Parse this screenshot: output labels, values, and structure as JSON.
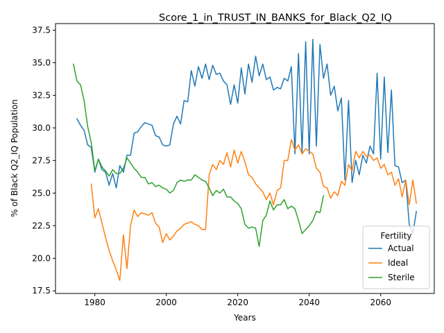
{
  "chart_data": {
    "type": "line",
    "title": "Score_1_in_TRUST_IN_BANKS_for_Black_Q2_IQ",
    "xlabel": "Years",
    "ylabel": "% of Black Q2_IQ Population",
    "xlim": [
      1969,
      2075
    ],
    "ylim": [
      17.3,
      38.0
    ],
    "xticks": [
      1980,
      2000,
      2020,
      2040,
      2060
    ],
    "yticks": [
      17.5,
      20.0,
      22.5,
      25.0,
      27.5,
      30.0,
      32.5,
      35.0,
      37.5
    ],
    "xtick_labels": [
      "1980",
      "2000",
      "2020",
      "2040",
      "2060"
    ],
    "ytick_labels": [
      "17.5",
      "20.0",
      "22.5",
      "25.0",
      "27.5",
      "30.0",
      "32.5",
      "35.0",
      "37.5"
    ],
    "grid": false,
    "legend": {
      "title": "Fertility",
      "position": "bottom-right"
    },
    "series": [
      {
        "name": "Actual",
        "color": "#1f77b4",
        "x": [
          1975,
          1976,
          1977,
          1978,
          1979,
          1980,
          1981,
          1982,
          1983,
          1984,
          1985,
          1986,
          1987,
          1988,
          1989,
          1990,
          1991,
          1992,
          1993,
          1994,
          1995,
          1996,
          1997,
          1998,
          1999,
          2000,
          2001,
          2002,
          2003,
          2004,
          2005,
          2006,
          2007,
          2008,
          2009,
          2010,
          2011,
          2012,
          2013,
          2014,
          2015,
          2016,
          2017,
          2018,
          2019,
          2020,
          2021,
          2022,
          2023,
          2024,
          2025,
          2026,
          2027,
          2028,
          2029,
          2030,
          2031,
          2032,
          2033,
          2034,
          2035,
          2036,
          2037,
          2038,
          2039,
          2040,
          2041,
          2042,
          2043,
          2044,
          2045,
          2046,
          2047,
          2048,
          2049,
          2050,
          2051,
          2052,
          2053,
          2054,
          2055,
          2056,
          2057,
          2058,
          2059,
          2060,
          2061,
          2062,
          2063,
          2064,
          2065,
          2066,
          2067,
          2068,
          2069,
          2070
        ],
        "values": [
          30.7,
          30.2,
          29.8,
          28.7,
          28.5,
          26.6,
          27.6,
          26.8,
          26.6,
          25.6,
          26.5,
          25.4,
          27.1,
          26.6,
          27.9,
          27.9,
          29.6,
          29.7,
          30.1,
          30.4,
          30.3,
          30.2,
          29.4,
          29.3,
          28.7,
          28.6,
          28.7,
          30.3,
          30.9,
          30.3,
          32.1,
          32.0,
          34.4,
          33.2,
          34.7,
          33.8,
          34.9,
          33.7,
          34.8,
          34.1,
          34.2,
          33.6,
          33.3,
          31.8,
          33.3,
          31.9,
          34.6,
          32.6,
          34.9,
          33.5,
          35.5,
          34.0,
          34.9,
          33.7,
          33.9,
          32.9,
          33.1,
          33.0,
          33.8,
          33.6,
          34.7,
          28.0,
          35.7,
          28.1,
          36.6,
          28.0,
          36.8,
          28.6,
          36.4,
          33.8,
          34.9,
          32.5,
          33.2,
          31.3,
          32.3,
          26.0,
          32.1,
          25.8,
          27.5,
          26.4,
          27.9,
          27.3,
          28.6,
          28.0,
          34.2,
          27.6,
          33.9,
          28.1,
          32.9,
          27.1,
          27.0,
          25.8,
          26.0,
          22.6,
          21.9,
          23.6
        ]
      },
      {
        "name": "Ideal",
        "color": "#ff7f0e",
        "x": [
          1979,
          1980,
          1981,
          1982,
          1983,
          1984,
          1985,
          1986,
          1987,
          1988,
          1989,
          1990,
          1991,
          1992,
          1993,
          1994,
          1995,
          1996,
          1997,
          1998,
          1999,
          2000,
          2001,
          2002,
          2003,
          2004,
          2005,
          2006,
          2007,
          2008,
          2009,
          2010,
          2011,
          2012,
          2013,
          2014,
          2015,
          2016,
          2017,
          2018,
          2019,
          2020,
          2021,
          2022,
          2023,
          2024,
          2025,
          2026,
          2027,
          2028,
          2029,
          2030,
          2031,
          2032,
          2033,
          2034,
          2035,
          2036,
          2037,
          2038,
          2039,
          2040,
          2041,
          2042,
          2043,
          2044,
          2045,
          2046,
          2047,
          2048,
          2049,
          2050,
          2051,
          2052,
          2053,
          2054,
          2055,
          2056,
          2057,
          2058,
          2059,
          2060,
          2061,
          2062,
          2063,
          2064,
          2065,
          2066,
          2067,
          2068,
          2069,
          2070
        ],
        "values": [
          25.7,
          23.1,
          23.8,
          22.7,
          21.6,
          20.6,
          19.8,
          19.1,
          18.3,
          21.8,
          19.2,
          22.5,
          23.7,
          23.2,
          23.5,
          23.4,
          23.3,
          23.5,
          22.7,
          22.4,
          21.2,
          21.9,
          21.4,
          21.7,
          22.1,
          22.3,
          22.6,
          22.7,
          22.8,
          22.6,
          22.5,
          22.2,
          22.2,
          26.4,
          27.2,
          26.8,
          27.5,
          27.2,
          28.1,
          27.0,
          28.3,
          27.3,
          28.2,
          27.4,
          26.4,
          26.2,
          25.7,
          25.4,
          25.1,
          24.5,
          25.0,
          24.1,
          25.2,
          25.4,
          27.5,
          27.5,
          29.1,
          28.3,
          28.7,
          28.0,
          28.4,
          28.2,
          28.0,
          26.9,
          26.6,
          25.5,
          25.4,
          24.6,
          25.1,
          24.8,
          25.9,
          25.6,
          27.2,
          26.7,
          28.2,
          27.7,
          28.2,
          27.8,
          27.9,
          27.5,
          27.7,
          26.9,
          27.2,
          26.4,
          26.6,
          25.6,
          26.1,
          24.7,
          26.0,
          24.1,
          26.0,
          24.2
        ]
      },
      {
        "name": "Sterile",
        "color": "#2ca02c",
        "x": [
          1974,
          1975,
          1976,
          1977,
          1978,
          1979,
          1980,
          1981,
          1982,
          1983,
          1984,
          1985,
          1986,
          1987,
          1988,
          1989,
          1990,
          1991,
          1992,
          1993,
          1994,
          1995,
          1996,
          1997,
          1998,
          1999,
          2000,
          2001,
          2002,
          2003,
          2004,
          2005,
          2006,
          2007,
          2008,
          2009,
          2010,
          2011,
          2012,
          2013,
          2014,
          2015,
          2016,
          2017,
          2018,
          2019,
          2020,
          2021,
          2022,
          2023,
          2024,
          2025,
          2026,
          2027,
          2028,
          2029,
          2030,
          2031,
          2032,
          2033,
          2034,
          2035,
          2036,
          2037,
          2038,
          2039,
          2040,
          2041,
          2042,
          2043,
          2044
        ],
        "values": [
          34.9,
          33.6,
          33.3,
          32.1,
          30.1,
          28.9,
          26.7,
          27.6,
          27.0,
          26.7,
          26.3,
          26.8,
          26.5,
          26.5,
          26.9,
          27.7,
          27.3,
          26.9,
          26.6,
          26.2,
          26.2,
          25.7,
          25.8,
          25.5,
          25.6,
          25.4,
          25.3,
          25.0,
          25.2,
          25.8,
          26.0,
          25.9,
          26.0,
          26.0,
          26.4,
          26.2,
          26.0,
          25.9,
          25.4,
          24.8,
          25.2,
          25.0,
          25.3,
          24.7,
          24.7,
          24.4,
          24.2,
          23.8,
          22.6,
          22.3,
          22.4,
          22.3,
          20.9,
          22.9,
          23.3,
          24.4,
          23.7,
          24.1,
          24.1,
          24.5,
          23.8,
          24.0,
          23.8,
          22.9,
          21.9,
          22.2,
          22.5,
          22.9,
          23.6,
          23.5,
          24.8
        ]
      }
    ]
  }
}
